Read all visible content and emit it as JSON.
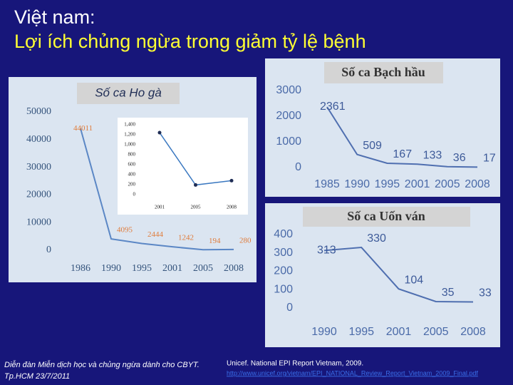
{
  "slide_title": {
    "line1": "Việt nam:",
    "line2": "Lợi ích chủng ngừa trong giảm tỷ lệ bệnh"
  },
  "chart_data": [
    {
      "type": "line",
      "title": "Số ca Ho gà",
      "categories": [
        "1986",
        "1990",
        "1995",
        "2001",
        "2005",
        "2008"
      ],
      "values": [
        44011,
        4095,
        2444,
        1242,
        194,
        280
      ],
      "color": "#5b87c5",
      "label_color": "#e07b39",
      "ylim": [
        0,
        50000
      ],
      "yticks": [
        0,
        10000,
        20000,
        30000,
        40000,
        50000
      ],
      "grid": false
    },
    {
      "type": "line",
      "categories": [
        "2001",
        "2005",
        "2008"
      ],
      "values": [
        1242,
        194,
        280
      ],
      "color": "#3a78c0",
      "ylim": [
        0,
        1400
      ],
      "yticks": [
        0,
        200,
        400,
        600,
        800,
        {
          "value": 1000,
          "label": "1,000"
        },
        {
          "value": 1200,
          "label": "1,200"
        },
        {
          "value": 1400,
          "label": "1,400"
        }
      ],
      "grid": false
    },
    {
      "type": "line",
      "title": "Số ca Bạch hầu",
      "categories": [
        "1985",
        "1990",
        "1995",
        "2001",
        "2005",
        "2008"
      ],
      "values": [
        2361,
        509,
        167,
        133,
        36,
        17
      ],
      "color": "#4f6fb0",
      "label_color": "#3d5a99",
      "ylim": [
        0,
        3000
      ],
      "yticks": [
        0,
        1000,
        2000,
        3000
      ],
      "grid": false
    },
    {
      "type": "line",
      "title": "Số ca Uốn ván",
      "categories": [
        "1990",
        "1995",
        "2001",
        "2005",
        "2008"
      ],
      "values": [
        313,
        330,
        104,
        35,
        33
      ],
      "color": "#4f6fb0",
      "label_color": "#3d5a99",
      "ylim": [
        0,
        400
      ],
      "yticks": [
        0,
        100,
        200,
        300,
        400
      ],
      "grid": false
    }
  ],
  "footer": {
    "left1": "Diễn đàn Miễn dịch học và chủng ngừa dành cho CBYT.",
    "left2": "Tp.HCM 23/7/2011",
    "source": "Unicef. National EPI Report Vietnam, 2009.",
    "url": "http://www.unicef.org/vietnam/EPI_NATIONAL_Review_Report_Vietnam_2009_Final.pdf"
  }
}
